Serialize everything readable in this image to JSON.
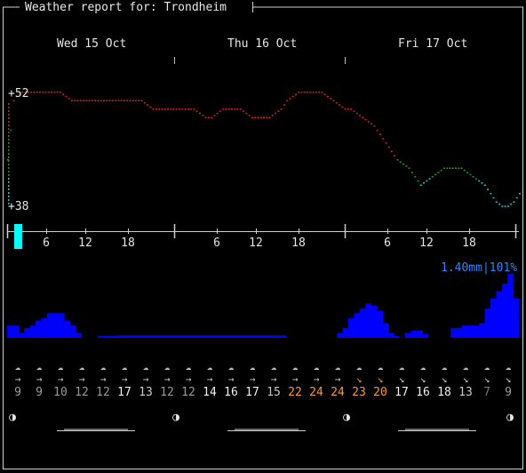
{
  "window": {
    "title": "Weather report for: Trondheim"
  },
  "days": [
    {
      "label": "Wed 15 Oct"
    },
    {
      "label": "Thu 16 Oct"
    },
    {
      "label": "Fri 17 Oct"
    }
  ],
  "temperature": {
    "max_label": "+52",
    "min_label": "+38",
    "unit": "F",
    "ylim": [
      38,
      52
    ],
    "hourly_values": [
      44,
      51,
      52,
      52,
      52,
      52,
      52,
      52,
      52,
      52,
      51.5,
      51,
      51,
      51,
      51,
      51,
      51,
      51,
      51,
      51,
      51,
      51,
      51,
      51,
      50.5,
      50,
      50,
      50,
      50,
      50,
      50,
      50,
      50,
      49.5,
      49,
      49,
      49.5,
      50,
      50,
      50,
      50,
      49.5,
      49,
      49,
      49,
      49,
      49.5,
      50,
      51,
      51.5,
      52,
      52,
      52,
      52,
      52,
      51.5,
      51,
      50.5,
      50,
      50,
      49.5,
      49,
      48.5,
      48,
      47,
      46,
      45,
      44,
      43.5,
      43,
      42,
      41,
      41.5,
      42,
      42.5,
      43,
      43,
      43,
      43,
      42.5,
      42,
      41.5,
      41,
      40,
      39,
      38.5,
      38.5,
      39,
      40
    ]
  },
  "hour_ticks": [
    {
      "label": "6"
    },
    {
      "label": "12"
    },
    {
      "label": "18"
    },
    {
      "label": "6"
    },
    {
      "label": "12"
    },
    {
      "label": "18"
    },
    {
      "label": "6"
    },
    {
      "label": "12"
    },
    {
      "label": "18"
    }
  ],
  "precipitation": {
    "label": "1.40mm|101%",
    "hourly_values": [
      0.25,
      0.25,
      0.1,
      0.2,
      0.25,
      0.35,
      0.4,
      0.5,
      0.5,
      0.5,
      0.35,
      0.25,
      0.1,
      0,
      0,
      0,
      0.03,
      0.03,
      0.03,
      0.05,
      0.05,
      0.05,
      0.05,
      0.05,
      0.05,
      0.05,
      0.05,
      0.05,
      0.05,
      0.05,
      0.05,
      0.05,
      0.05,
      0.05,
      0.05,
      0.05,
      0.05,
      0.05,
      0.05,
      0.05,
      0.05,
      0.05,
      0.05,
      0.05,
      0.05,
      0.05,
      0.05,
      0.05,
      0.05,
      0,
      0,
      0,
      0,
      0,
      0,
      0,
      0,
      0,
      0.1,
      0.2,
      0.4,
      0.5,
      0.6,
      0.7,
      0.65,
      0.55,
      0.3,
      0.1,
      0.03,
      0,
      0.1,
      0.15,
      0.15,
      0.08,
      0,
      0,
      0,
      0,
      0.2,
      0.2,
      0.25,
      0.25,
      0.25,
      0.3,
      0.6,
      0.8,
      0.95,
      1.1,
      1.3,
      0.8
    ]
  },
  "weather_icons": [
    "cloudy-rain",
    "cloudy-rain",
    "cloudy-rain",
    "cloudy-rain",
    "cloudy-rain",
    "cloudy-rain",
    "cloudy-rain",
    "cloudy-rain",
    "cloudy-rain",
    "cloudy-rain",
    "cloudy-rain",
    "cloudy-rain",
    "cloudy-rain",
    "cloudy-rain",
    "cloudy-rain",
    "cloudy-rain",
    "cloudy-rain",
    "cloudy-rain",
    "cloudy-rain",
    "cloudy-rain",
    "cloudy-rain",
    "cloudy-rain",
    "cloudy-rain",
    "cloudy-rain"
  ],
  "wind_arrows": [
    "→",
    "→",
    "→",
    "→",
    "→",
    "→",
    "→",
    "→",
    "→",
    "→",
    "→",
    "→",
    "→",
    "→",
    "→",
    "→",
    "↘",
    "↘",
    "↘",
    "↘",
    "↘",
    "↘",
    "↘",
    "↘"
  ],
  "wind_speeds": [
    {
      "v": "9",
      "color": "#9a9a9a"
    },
    {
      "v": "9",
      "color": "#9a9a9a"
    },
    {
      "v": "10",
      "color": "#9a9a9a"
    },
    {
      "v": "12",
      "color": "#9a9a9a"
    },
    {
      "v": "12",
      "color": "#9a9a9a"
    },
    {
      "v": "17",
      "color": "#f0f0f0"
    },
    {
      "v": "13",
      "color": "#c8c8c8"
    },
    {
      "v": "12",
      "color": "#9a9a9a"
    },
    {
      "v": "12",
      "color": "#9a9a9a"
    },
    {
      "v": "14",
      "color": "#f0f0f0"
    },
    {
      "v": "16",
      "color": "#f0f0f0"
    },
    {
      "v": "17",
      "color": "#f0f0f0"
    },
    {
      "v": "15",
      "color": "#c8c8c8"
    },
    {
      "v": "22",
      "color": "#ff9a1f"
    },
    {
      "v": "24",
      "color": "#ff9a1f"
    },
    {
      "v": "24",
      "color": "#ff9a1f"
    },
    {
      "v": "23",
      "color": "#ff9a1f"
    },
    {
      "v": "20",
      "color": "#ff9a1f"
    },
    {
      "v": "17",
      "color": "#f0f0f0"
    },
    {
      "v": "16",
      "color": "#f0f0f0"
    },
    {
      "v": "18",
      "color": "#f0f0f0"
    },
    {
      "v": "13",
      "color": "#c8c8c8"
    },
    {
      "v": "7",
      "color": "#777777"
    },
    {
      "v": "9",
      "color": "#9a9a9a"
    }
  ],
  "moon_phases": [
    {
      "glyph": "◑"
    },
    {
      "glyph": "◑"
    },
    {
      "glyph": "◑"
    },
    {
      "glyph": "◑"
    }
  ],
  "colors": {
    "temp_warm": "#d42020",
    "temp_mild": "#1f9a1f",
    "temp_cold": "#1ec8d6",
    "precip": "#0000ff",
    "now_marker": "#00ffff",
    "wind_strong": "#ff9a1f"
  }
}
